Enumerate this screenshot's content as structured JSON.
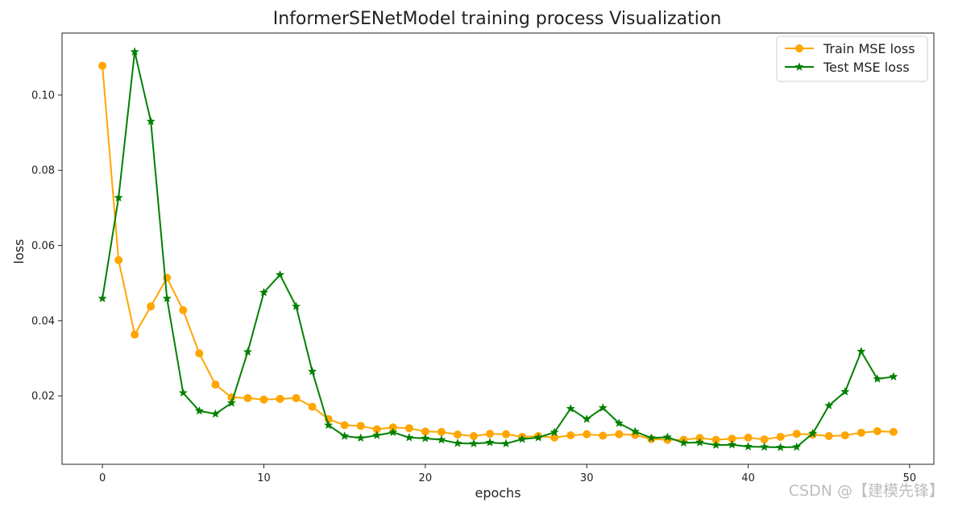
{
  "chart_data": {
    "type": "line",
    "title": "InformerSENetModel training process Visualization",
    "xlabel": "epochs",
    "ylabel": "loss",
    "xlim": [
      -2.5,
      51.5
    ],
    "ylim": [
      0.0018,
      0.1165
    ],
    "xticks": [
      0,
      10,
      20,
      30,
      40,
      50
    ],
    "xtick_labels": [
      "0",
      "10",
      "20",
      "30",
      "40",
      "50"
    ],
    "yticks": [
      0.02,
      0.04,
      0.06,
      0.08,
      0.1
    ],
    "ytick_labels": [
      "0.02",
      "0.04",
      "0.06",
      "0.08",
      "0.10"
    ],
    "grid": false,
    "legend_position": "top-right",
    "x": [
      0,
      1,
      2,
      3,
      4,
      5,
      6,
      7,
      8,
      9,
      10,
      11,
      12,
      13,
      14,
      15,
      16,
      17,
      18,
      19,
      20,
      21,
      22,
      23,
      24,
      25,
      26,
      27,
      28,
      29,
      30,
      31,
      32,
      33,
      34,
      35,
      36,
      37,
      38,
      39,
      40,
      41,
      42,
      43,
      44,
      45,
      46,
      47,
      48,
      49
    ],
    "series": [
      {
        "name": "Train MSE loss",
        "color": "#ffa500",
        "marker": "circle",
        "values": [
          0.1078,
          0.0561,
          0.0363,
          0.0438,
          0.0514,
          0.0428,
          0.0313,
          0.023,
          0.0196,
          0.0194,
          0.019,
          0.0192,
          0.0194,
          0.0171,
          0.0138,
          0.0122,
          0.012,
          0.0111,
          0.0116,
          0.0114,
          0.0105,
          0.0104,
          0.0097,
          0.0093,
          0.0099,
          0.0098,
          0.0091,
          0.0093,
          0.0089,
          0.0095,
          0.0098,
          0.0094,
          0.0098,
          0.0096,
          0.0085,
          0.0083,
          0.0083,
          0.0088,
          0.0083,
          0.0086,
          0.0089,
          0.0084,
          0.0091,
          0.0099,
          0.0097,
          0.0093,
          0.0095,
          0.0102,
          0.0106,
          0.0104
        ]
      },
      {
        "name": "Test MSE loss",
        "color": "#008000",
        "marker": "star",
        "values": [
          0.0459,
          0.0727,
          0.1115,
          0.093,
          0.0459,
          0.0208,
          0.016,
          0.0152,
          0.0181,
          0.0317,
          0.0475,
          0.0522,
          0.0438,
          0.0265,
          0.0122,
          0.0093,
          0.0088,
          0.0095,
          0.0103,
          0.0089,
          0.0087,
          0.0083,
          0.0074,
          0.0073,
          0.0076,
          0.0073,
          0.0085,
          0.0089,
          0.0103,
          0.0166,
          0.0138,
          0.0168,
          0.0127,
          0.0105,
          0.0088,
          0.009,
          0.0075,
          0.0076,
          0.0069,
          0.007,
          0.0065,
          0.0064,
          0.0063,
          0.0064,
          0.01,
          0.0174,
          0.0211,
          0.0318,
          0.0245,
          0.0251
        ]
      }
    ]
  },
  "watermark": {
    "text": "CSDN @【建模先锋】"
  }
}
